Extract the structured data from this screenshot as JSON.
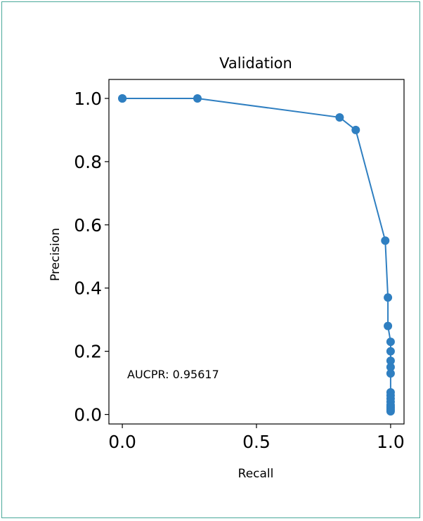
{
  "chart_data": {
    "type": "line",
    "title": "Validation",
    "xlabel": "Recall",
    "ylabel": "Precision",
    "xlim": [
      -0.05,
      1.05
    ],
    "ylim": [
      -0.03,
      1.06
    ],
    "xticks": [
      0.0,
      0.5,
      1.0
    ],
    "xtick_labels": [
      "0.0",
      "0.5",
      "1.0"
    ],
    "yticks": [
      0.0,
      0.2,
      0.4,
      0.6,
      0.8,
      1.0
    ],
    "ytick_labels": [
      "0.0",
      "0.2",
      "0.4",
      "0.6",
      "0.8",
      "1.0"
    ],
    "grid": false,
    "color": "#2f7fc1",
    "annotation": "AUCPR: 0.95617",
    "series": [
      {
        "x": [
          0.0,
          0.0,
          0.28,
          0.81,
          0.87,
          0.98,
          0.99,
          0.99,
          1.0,
          1.0,
          1.0,
          1.0,
          1.0,
          1.0,
          1.0,
          1.0,
          1.0,
          1.0,
          1.0,
          1.0,
          1.0,
          1.0
        ],
        "y": [
          1.0,
          1.0,
          1.0,
          0.94,
          0.9,
          0.55,
          0.37,
          0.28,
          0.23,
          0.2,
          0.17,
          0.15,
          0.13,
          0.07,
          0.06,
          0.05,
          0.04,
          0.03,
          0.025,
          0.02,
          0.015,
          0.01
        ]
      }
    ]
  }
}
